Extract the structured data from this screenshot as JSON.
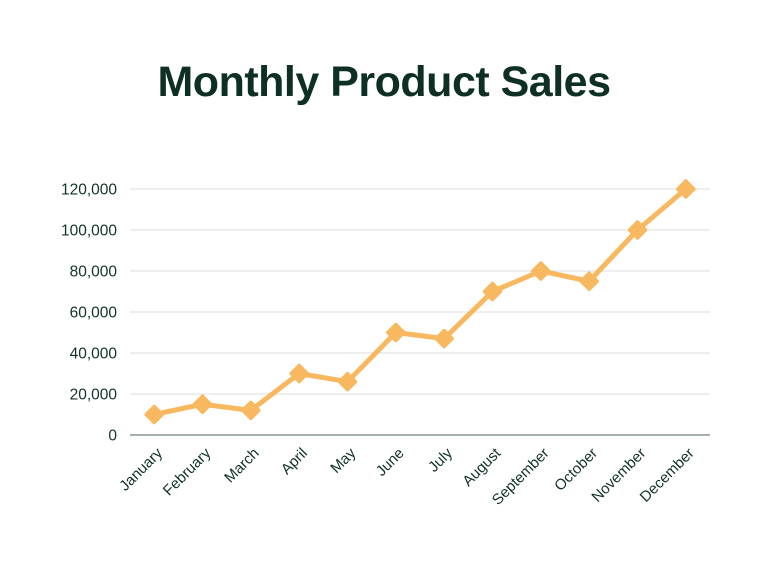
{
  "title": "Monthly Product Sales",
  "colors": {
    "background": "#ffffff",
    "title_text": "#0e3024",
    "tick_text": "#123329",
    "line": "#f8b860",
    "marker": "#f8b860",
    "gridline": "#e3e3e3",
    "axis_line": "#9aa5a2"
  },
  "chart_data": {
    "type": "line",
    "title": "Monthly Product Sales",
    "categories": [
      "January",
      "February",
      "March",
      "April",
      "May",
      "June",
      "July",
      "August",
      "September",
      "October",
      "November",
      "December"
    ],
    "series": [
      {
        "name": "Monthly Product Sales",
        "values": [
          10000,
          15000,
          12000,
          30000,
          26000,
          50000,
          47000,
          70000,
          80000,
          75000,
          100000,
          120000
        ]
      }
    ],
    "xlabel": "",
    "ylabel": "",
    "ylim": [
      0,
      120000
    ],
    "yticks": [
      {
        "value": 0,
        "label": "0"
      },
      {
        "value": 20000,
        "label": "20,000"
      },
      {
        "value": 40000,
        "label": "40,000"
      },
      {
        "value": 60000,
        "label": "60,000"
      },
      {
        "value": 80000,
        "label": "80,000"
      },
      {
        "value": 100000,
        "label": "100,000"
      },
      {
        "value": 120000,
        "label": "120,000"
      }
    ],
    "grid": "horizontal",
    "legend": "none",
    "marker_shape": "diamond",
    "x_tick_rotation": 45
  }
}
